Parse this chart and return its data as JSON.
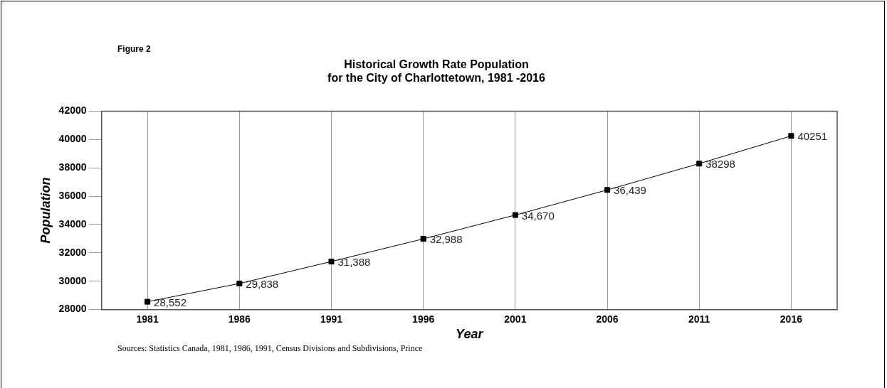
{
  "chart_data": {
    "type": "line",
    "title": "Historical Growth Rate Population\nfor the City of Charlottetown, 1981 -2016",
    "xlabel": "Year",
    "ylabel": "Population",
    "categories": [
      "1981",
      "1986",
      "1991",
      "1996",
      "2001",
      "2006",
      "2011",
      "2016"
    ],
    "series": [
      {
        "color": "#000000",
        "values": [
          28552,
          29838,
          31388,
          32988,
          34670,
          36439,
          38298,
          40251
        ],
        "value_labels": [
          "28,552",
          "29,838",
          "31,388",
          "32,988",
          "34,670",
          "36,439",
          "38298",
          "40251"
        ]
      }
    ],
    "ylim": [
      28000,
      42000
    ],
    "yticks": [
      28000,
      30000,
      32000,
      34000,
      36000,
      38000,
      40000,
      42000
    ],
    "grid": "x",
    "legend": false,
    "marker": "square",
    "line_style": "solid",
    "annotations": [
      "Figure 2",
      "Sources: Statistics Canada, 1981, 1986, 1991, Census Divisions and Subdivisions, Prince"
    ]
  }
}
